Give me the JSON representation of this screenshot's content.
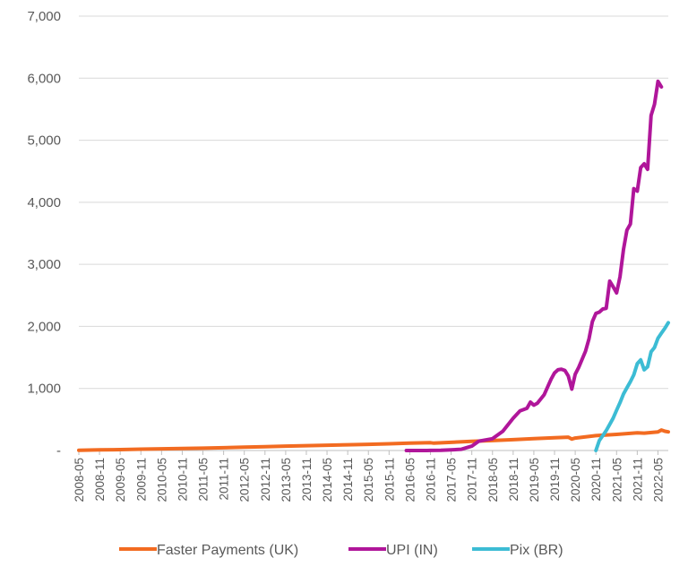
{
  "chart_data": {
    "type": "line",
    "title": "",
    "xlabel": "",
    "ylabel": "",
    "ylim": [
      0,
      7000
    ],
    "y_ticks": [
      0,
      1000,
      2000,
      3000,
      4000,
      5000,
      6000,
      7000
    ],
    "y_tick_labels": [
      "-",
      "1,000",
      "2,000",
      "3,000",
      "4,000",
      "5,000",
      "6,000",
      "7,000"
    ],
    "x_start": "2008-05",
    "x_end": "2022-08",
    "x_tick_labels": [
      "2008-05",
      "2008-11",
      "2009-05",
      "2009-11",
      "2010-05",
      "2010-11",
      "2011-05",
      "2011-11",
      "2012-05",
      "2012-11",
      "2013-05",
      "2013-11",
      "2014-05",
      "2014-11",
      "2015-05",
      "2015-11",
      "2016-05",
      "2016-11",
      "2017-05",
      "2017-11",
      "2018-05",
      "2018-11",
      "2019-05",
      "2019-11",
      "2020-05",
      "2020-11",
      "2021-05",
      "2021-11",
      "2022-05"
    ],
    "grid": true,
    "legend_position": "bottom",
    "series": [
      {
        "name": "Faster Payments (UK)",
        "color": "#f26b21",
        "points": [
          [
            "2008-05",
            5
          ],
          [
            "2008-11",
            10
          ],
          [
            "2009-05",
            15
          ],
          [
            "2009-11",
            22
          ],
          [
            "2010-05",
            28
          ],
          [
            "2010-11",
            33
          ],
          [
            "2011-05",
            38
          ],
          [
            "2011-11",
            45
          ],
          [
            "2012-05",
            55
          ],
          [
            "2012-11",
            62
          ],
          [
            "2013-05",
            70
          ],
          [
            "2013-11",
            78
          ],
          [
            "2014-05",
            85
          ],
          [
            "2014-11",
            92
          ],
          [
            "2015-05",
            100
          ],
          [
            "2015-11",
            108
          ],
          [
            "2016-05",
            118
          ],
          [
            "2016-11",
            125
          ],
          [
            "2016-12",
            118
          ],
          [
            "2017-05",
            132
          ],
          [
            "2017-11",
            148
          ],
          [
            "2018-05",
            160
          ],
          [
            "2018-11",
            175
          ],
          [
            "2019-05",
            190
          ],
          [
            "2019-11",
            205
          ],
          [
            "2020-03",
            215
          ],
          [
            "2020-04",
            185
          ],
          [
            "2020-05",
            200
          ],
          [
            "2020-11",
            240
          ],
          [
            "2021-05",
            260
          ],
          [
            "2021-11",
            285
          ],
          [
            "2022-01",
            280
          ],
          [
            "2022-05",
            300
          ],
          [
            "2022-06",
            330
          ],
          [
            "2022-07",
            310
          ],
          [
            "2022-08",
            300
          ]
        ]
      },
      {
        "name": "UPI (IN)",
        "color": "#b0169a",
        "points": [
          [
            "2016-04",
            0
          ],
          [
            "2016-10",
            0
          ],
          [
            "2016-11",
            1
          ],
          [
            "2017-02",
            3
          ],
          [
            "2017-05",
            10
          ],
          [
            "2017-08",
            20
          ],
          [
            "2017-11",
            70
          ],
          [
            "2018-01",
            150
          ],
          [
            "2018-03",
            170
          ],
          [
            "2018-05",
            190
          ],
          [
            "2018-08",
            310
          ],
          [
            "2018-11",
            520
          ],
          [
            "2019-01",
            640
          ],
          [
            "2019-03",
            680
          ],
          [
            "2019-04",
            780
          ],
          [
            "2019-05",
            730
          ],
          [
            "2019-06",
            760
          ],
          [
            "2019-08",
            900
          ],
          [
            "2019-10",
            1150
          ],
          [
            "2019-11",
            1250
          ],
          [
            "2019-12",
            1300
          ],
          [
            "2020-01",
            1310
          ],
          [
            "2020-02",
            1290
          ],
          [
            "2020-03",
            1200
          ],
          [
            "2020-04",
            990
          ],
          [
            "2020-05",
            1230
          ],
          [
            "2020-06",
            1340
          ],
          [
            "2020-08",
            1600
          ],
          [
            "2020-09",
            1800
          ],
          [
            "2020-10",
            2080
          ],
          [
            "2020-11",
            2210
          ],
          [
            "2020-12",
            2230
          ],
          [
            "2021-01",
            2280
          ],
          [
            "2021-02",
            2290
          ],
          [
            "2021-03",
            2730
          ],
          [
            "2021-04",
            2640
          ],
          [
            "2021-05",
            2540
          ],
          [
            "2021-06",
            2800
          ],
          [
            "2021-07",
            3240
          ],
          [
            "2021-08",
            3550
          ],
          [
            "2021-09",
            3650
          ],
          [
            "2021-10",
            4220
          ],
          [
            "2021-11",
            4180
          ],
          [
            "2021-12",
            4560
          ],
          [
            "2022-01",
            4620
          ],
          [
            "2022-02",
            4530
          ],
          [
            "2022-03",
            5400
          ],
          [
            "2022-04",
            5580
          ],
          [
            "2022-05",
            5950
          ],
          [
            "2022-06",
            5860
          ]
        ]
      },
      {
        "name": "Pix (BR)",
        "color": "#3cbcd4",
        "points": [
          [
            "2020-11",
            0
          ],
          [
            "2020-12",
            160
          ],
          [
            "2021-01",
            240
          ],
          [
            "2021-02",
            320
          ],
          [
            "2021-03",
            420
          ],
          [
            "2021-04",
            520
          ],
          [
            "2021-05",
            650
          ],
          [
            "2021-06",
            770
          ],
          [
            "2021-07",
            910
          ],
          [
            "2021-08",
            1010
          ],
          [
            "2021-09",
            1110
          ],
          [
            "2021-10",
            1220
          ],
          [
            "2021-11",
            1400
          ],
          [
            "2021-12",
            1460
          ],
          [
            "2022-01",
            1300
          ],
          [
            "2022-02",
            1350
          ],
          [
            "2022-03",
            1590
          ],
          [
            "2022-04",
            1660
          ],
          [
            "2022-05",
            1810
          ],
          [
            "2022-06",
            1890
          ],
          [
            "2022-07",
            1970
          ],
          [
            "2022-08",
            2060
          ]
        ]
      }
    ]
  }
}
